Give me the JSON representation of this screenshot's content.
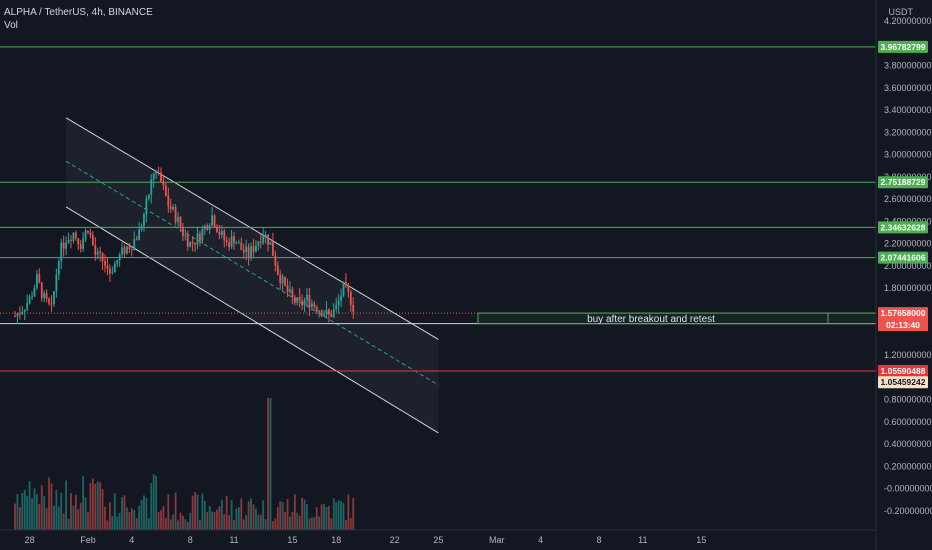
{
  "header": {
    "symbol_line": "ALPHA / TetherUS, 4h, BINANCE",
    "indicator": "Vol"
  },
  "currency_label": "USDT",
  "colors": {
    "background": "#131722",
    "up": "#26a69a",
    "down": "#ef5350",
    "level_green": "#4caf50",
    "level_red": "#e53935",
    "channel": "#d1d4dc",
    "midline": "#26a69a",
    "grid_text": "#b2b5be"
  },
  "annotation": {
    "text": "buy after breakout and retest",
    "price_from": 1.5766,
    "price_to": 1.4818
  },
  "chart_data": {
    "type": "candlestick",
    "title": "ALPHA / TetherUS, 4h, BINANCE",
    "xlabel": "",
    "ylabel": "",
    "ylim": [
      -0.3,
      4.3
    ],
    "y_ticks": [
      "4.20000000",
      "3.80000000",
      "3.60000000",
      "3.40000000",
      "3.20000000",
      "3.00000000",
      "2.80000000",
      "2.60000000",
      "2.40000000",
      "2.20000000",
      "2.00000000",
      "1.80000000",
      "1.20000000",
      "0.80000000",
      "0.60000000",
      "0.40000000",
      "0.20000000",
      "-0.00000000",
      "-0.20000000"
    ],
    "y_tick_values": [
      4.2,
      3.8,
      3.6,
      3.4,
      3.2,
      3.0,
      2.8,
      2.6,
      2.4,
      2.2,
      2.0,
      1.8,
      1.2,
      0.8,
      0.6,
      0.4,
      0.2,
      0.0,
      -0.2
    ],
    "x_ticks": [
      "28",
      "Feb",
      "4",
      "8",
      "11",
      "15",
      "18",
      "22",
      "25",
      "Mar",
      "4",
      "8",
      "11",
      "15"
    ],
    "x_tick_days": [
      -4,
      0,
      3,
      7,
      10,
      14,
      17,
      21,
      24,
      28,
      31,
      35,
      38,
      42
    ],
    "horizontal_levels": [
      {
        "label": "3.96782799",
        "price": 3.96782799,
        "color": "#4caf50"
      },
      {
        "label": "2.75188729",
        "price": 2.75188729,
        "color": "#4caf50"
      },
      {
        "label": "2.34632628",
        "price": 2.34632628,
        "color": "#4caf50"
      },
      {
        "label": "2.07441606",
        "price": 2.07441606,
        "color": "#4caf50"
      },
      {
        "label": "1.48180131",
        "price": 1.48180131,
        "color": "#d1d4dc"
      },
      {
        "label": "1.05590488",
        "price": 1.05590488,
        "color": "#e53935"
      },
      {
        "label": "1.05459242",
        "price": 1.05459242,
        "color": "#e53935"
      }
    ],
    "last_price": {
      "label": "1.57658000",
      "price": 1.57658,
      "countdown": "02:13:40"
    },
    "channel": {
      "upper": [
        [
          -1.5,
          3.33
        ],
        [
          24.0,
          1.34
        ]
      ],
      "middle": [
        [
          -1.5,
          2.94
        ],
        [
          24.0,
          0.93
        ]
      ],
      "lower": [
        [
          -1.5,
          2.53
        ],
        [
          24.0,
          0.5
        ]
      ]
    },
    "price_path": [
      [
        -5.0,
        1.55
      ],
      [
        -4.5,
        1.62
      ],
      [
        -4.0,
        1.7
      ],
      [
        -3.5,
        1.88
      ],
      [
        -3.0,
        1.7
      ],
      [
        -2.5,
        1.6
      ],
      [
        -2.0,
        2.1
      ],
      [
        -1.5,
        2.25
      ],
      [
        -1.0,
        2.3
      ],
      [
        -0.5,
        2.2
      ],
      [
        0,
        2.35
      ],
      [
        0.5,
        2.1
      ],
      [
        1.0,
        2.05
      ],
      [
        1.5,
        1.95
      ],
      [
        2.0,
        2.05
      ],
      [
        2.5,
        2.15
      ],
      [
        3.0,
        2.2
      ],
      [
        3.5,
        2.3
      ],
      [
        4.0,
        2.55
      ],
      [
        4.5,
        2.85
      ],
      [
        5.0,
        2.75
      ],
      [
        5.5,
        2.55
      ],
      [
        6.0,
        2.45
      ],
      [
        6.5,
        2.3
      ],
      [
        7.0,
        2.2
      ],
      [
        7.5,
        2.25
      ],
      [
        8.0,
        2.35
      ],
      [
        8.5,
        2.45
      ],
      [
        9.0,
        2.3
      ],
      [
        9.5,
        2.2
      ],
      [
        10.0,
        2.25
      ],
      [
        10.5,
        2.15
      ],
      [
        11.0,
        2.1
      ],
      [
        11.5,
        2.2
      ],
      [
        12.0,
        2.3
      ],
      [
        12.5,
        2.2
      ],
      [
        13.0,
        1.95
      ],
      [
        13.5,
        1.8
      ],
      [
        14.0,
        1.7
      ],
      [
        14.5,
        1.65
      ],
      [
        15.0,
        1.7
      ],
      [
        15.5,
        1.65
      ],
      [
        16.0,
        1.6
      ],
      [
        16.5,
        1.55
      ],
      [
        17.0,
        1.62
      ],
      [
        17.5,
        1.8
      ],
      [
        18.0,
        1.7
      ],
      [
        18.3,
        1.58
      ]
    ],
    "volume_axis_ticks_note": "volume pane shares lower area",
    "volume_peak_day": 12.4
  }
}
